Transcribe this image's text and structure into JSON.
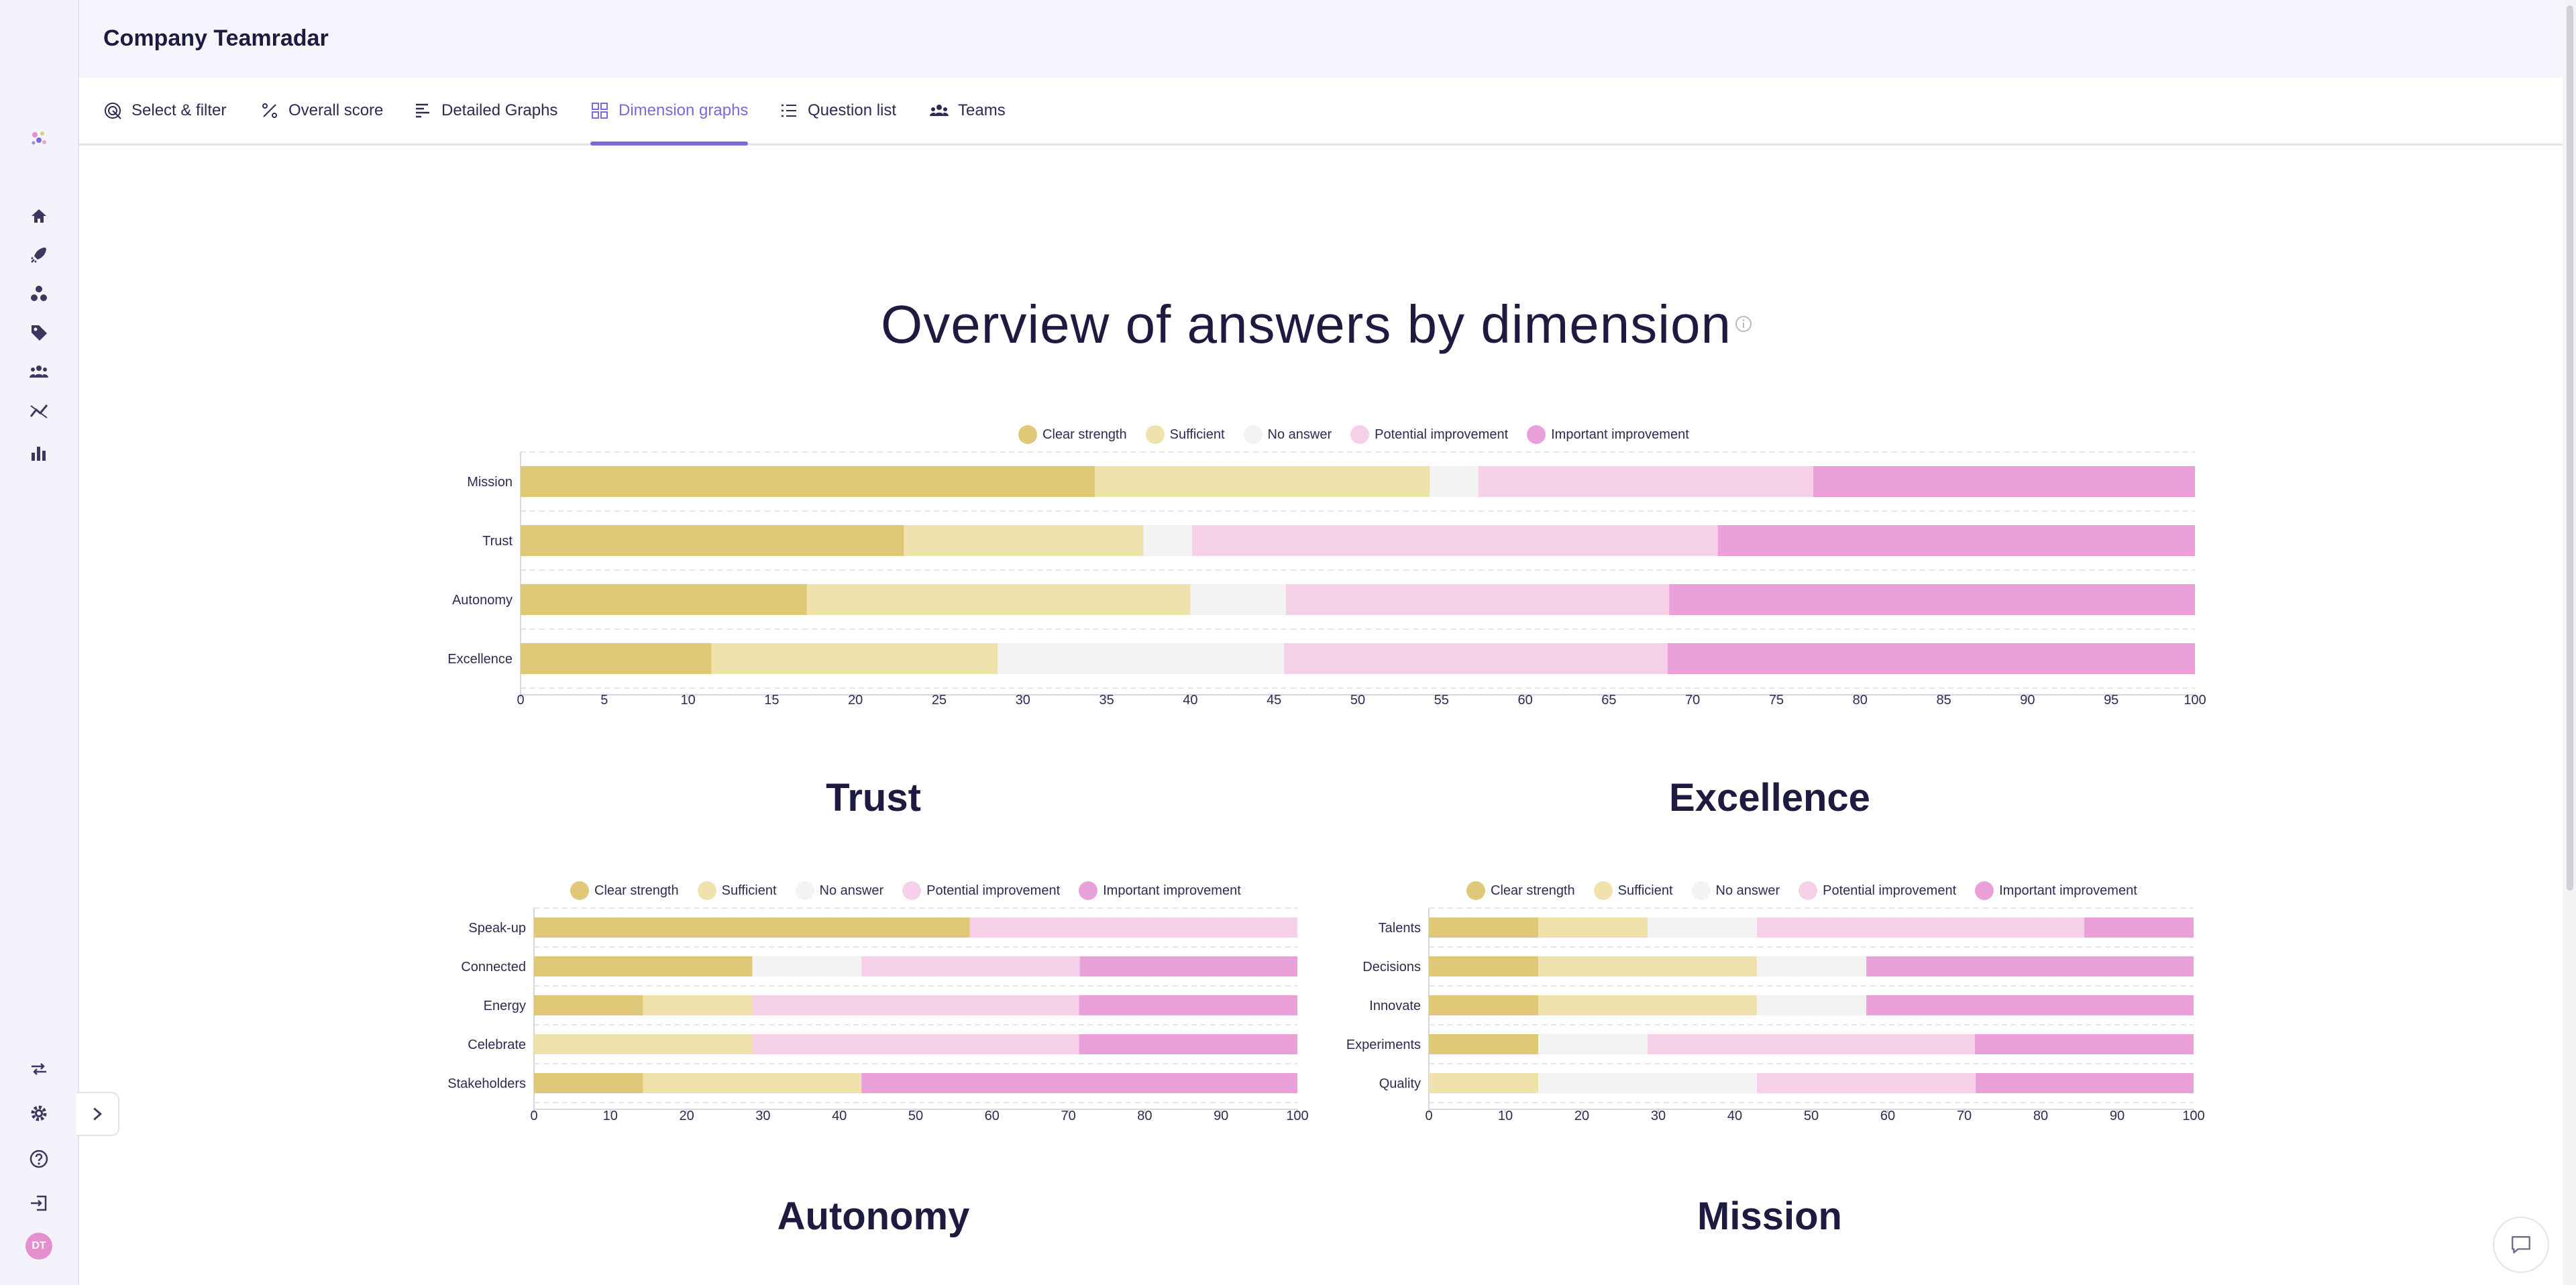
{
  "header": {
    "title": "Company Teamradar"
  },
  "tabs": [
    {
      "label": "Select & filter",
      "icon": "target-icon"
    },
    {
      "label": "Overall score",
      "icon": "percent-icon"
    },
    {
      "label": "Detailed Graphs",
      "icon": "bars-icon"
    },
    {
      "label": "Dimension graphs",
      "icon": "grid-icon",
      "active": true
    },
    {
      "label": "Question list",
      "icon": "list-icon"
    },
    {
      "label": "Teams",
      "icon": "team-icon"
    }
  ],
  "sidebar": {
    "items": [
      "logo-icon",
      "home-icon",
      "rocket-icon",
      "cluster-icon",
      "tag-icon",
      "team-icon",
      "trend-icon",
      "bar-chart-icon"
    ],
    "bottom_items": [
      "compare-icon",
      "gear-icon",
      "help-icon",
      "logout-icon"
    ],
    "avatar_initials": "DT"
  },
  "main": {
    "title": "Overview of answers by dimension",
    "sections": [
      "Trust",
      "Excellence",
      "Autonomy",
      "Mission"
    ]
  },
  "legend": {
    "labels": [
      "Clear strength",
      "Sufficient",
      "No answer",
      "Potential improvement",
      "Important improvement"
    ],
    "colors": [
      "#dfc878",
      "#efe2ad",
      "#f3f3f3",
      "#f6d0e9",
      "#eaa0d8"
    ]
  },
  "chart_data": [
    {
      "type": "bar",
      "orientation": "horizontal-stacked",
      "title": "Overview of answers by dimension",
      "categories": [
        "Mission",
        "Trust",
        "Autonomy",
        "Excellence"
      ],
      "series": [
        {
          "name": "Clear strength",
          "values": [
            34.3,
            22.9,
            17.1,
            11.4
          ]
        },
        {
          "name": "Sufficient",
          "values": [
            20.0,
            14.3,
            22.9,
            17.1
          ]
        },
        {
          "name": "No answer",
          "values": [
            2.9,
            2.9,
            5.7,
            17.1
          ]
        },
        {
          "name": "Potential improvement",
          "values": [
            20.0,
            31.4,
            22.9,
            22.9
          ]
        },
        {
          "name": "Important improvement",
          "values": [
            22.8,
            28.5,
            31.4,
            31.5
          ]
        }
      ],
      "xlim": [
        0,
        100
      ],
      "xticks": [
        0,
        5,
        10,
        15,
        20,
        25,
        30,
        35,
        40,
        45,
        50,
        55,
        60,
        65,
        70,
        75,
        80,
        85,
        90,
        95,
        100
      ],
      "legend_position": "top"
    },
    {
      "type": "bar",
      "orientation": "horizontal-stacked",
      "title": "Trust",
      "categories": [
        "Speak-up",
        "Connected",
        "Energy",
        "Celebrate",
        "Stakeholders"
      ],
      "series": [
        {
          "name": "Clear strength",
          "values": [
            57.1,
            28.6,
            14.3,
            0,
            14.3
          ]
        },
        {
          "name": "Sufficient",
          "values": [
            0,
            0,
            14.3,
            28.6,
            28.6
          ]
        },
        {
          "name": "No answer",
          "values": [
            0,
            14.3,
            0,
            0,
            0
          ]
        },
        {
          "name": "Potential improvement",
          "values": [
            42.9,
            28.6,
            42.8,
            42.8,
            0
          ]
        },
        {
          "name": "Important improvement",
          "values": [
            0,
            28.5,
            28.6,
            28.6,
            57.1
          ]
        }
      ],
      "xlim": [
        0,
        100
      ],
      "xticks": [
        0,
        10,
        20,
        30,
        40,
        50,
        60,
        70,
        80,
        90,
        100
      ],
      "legend_position": "top"
    },
    {
      "type": "bar",
      "orientation": "horizontal-stacked",
      "title": "Excellence",
      "categories": [
        "Talents",
        "Decisions",
        "Innovate",
        "Experiments",
        "Quality"
      ],
      "series": [
        {
          "name": "Clear strength",
          "values": [
            14.3,
            14.3,
            14.3,
            14.3,
            0
          ]
        },
        {
          "name": "Sufficient",
          "values": [
            14.3,
            28.6,
            28.6,
            0,
            14.3
          ]
        },
        {
          "name": "No answer",
          "values": [
            14.3,
            14.3,
            14.3,
            14.3,
            28.6
          ]
        },
        {
          "name": "Potential improvement",
          "values": [
            42.8,
            0,
            0,
            42.8,
            28.6
          ]
        },
        {
          "name": "Important improvement",
          "values": [
            14.3,
            42.8,
            42.8,
            28.6,
            28.5
          ]
        }
      ],
      "xlim": [
        0,
        100
      ],
      "xticks": [
        0,
        10,
        20,
        30,
        40,
        50,
        60,
        70,
        80,
        90,
        100
      ],
      "legend_position": "top"
    }
  ]
}
